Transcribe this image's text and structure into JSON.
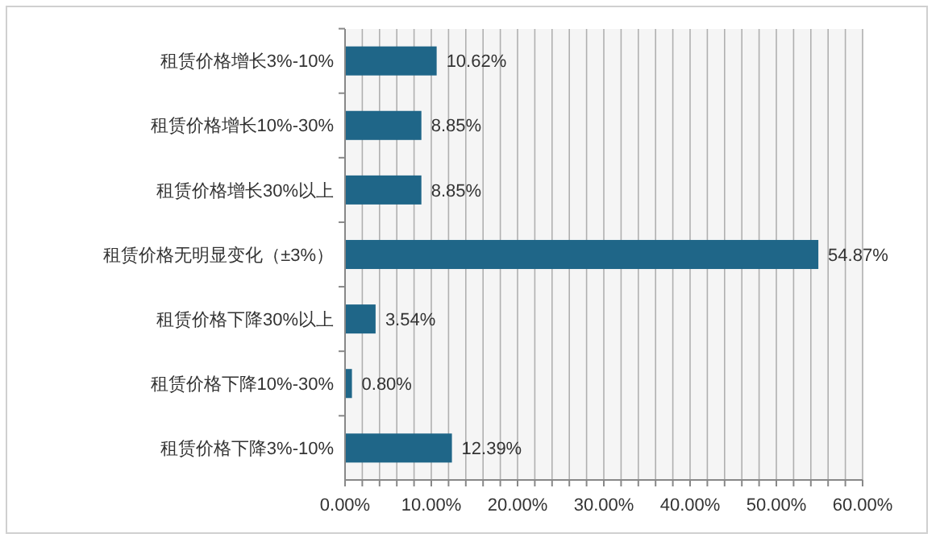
{
  "chart_data": {
    "type": "bar",
    "orientation": "horizontal",
    "categories": [
      "租赁价格增长3%-10%",
      "租赁价格增长10%-30%",
      "租赁价格增长30%以上",
      "租赁价格无明显变化（±3%）",
      "租赁价格下降30%以上",
      "租赁价格下降10%-30%",
      "租赁价格下降3%-10%"
    ],
    "values": [
      10.62,
      8.85,
      8.85,
      54.87,
      3.54,
      0.8,
      12.39
    ],
    "value_labels": [
      "10.62%",
      "8.85%",
      "8.85%",
      "54.87%",
      "3.54%",
      "0.80%",
      "12.39%"
    ],
    "color": "#1f6688",
    "xlim": [
      0,
      60
    ],
    "xticks": [
      {
        "value": 0,
        "label": "0.00%"
      },
      {
        "value": 2,
        "label": null
      },
      {
        "value": 4,
        "label": null
      },
      {
        "value": 6,
        "label": null
      },
      {
        "value": 8,
        "label": null
      },
      {
        "value": 10,
        "label": "10.00%"
      },
      {
        "value": 12,
        "label": null
      },
      {
        "value": 14,
        "label": null
      },
      {
        "value": 16,
        "label": null
      },
      {
        "value": 18,
        "label": null
      },
      {
        "value": 20,
        "label": "20.00%"
      },
      {
        "value": 22,
        "label": null
      },
      {
        "value": 24,
        "label": null
      },
      {
        "value": 26,
        "label": null
      },
      {
        "value": 28,
        "label": null
      },
      {
        "value": 30,
        "label": "30.00%"
      },
      {
        "value": 32,
        "label": null
      },
      {
        "value": 34,
        "label": null
      },
      {
        "value": 36,
        "label": null
      },
      {
        "value": 38,
        "label": null
      },
      {
        "value": 40,
        "label": "40.00%"
      },
      {
        "value": 42,
        "label": null
      },
      {
        "value": 44,
        "label": null
      },
      {
        "value": 46,
        "label": null
      },
      {
        "value": 48,
        "label": null
      },
      {
        "value": 50,
        "label": "50.00%"
      },
      {
        "value": 52,
        "label": null
      },
      {
        "value": 54,
        "label": null
      },
      {
        "value": 56,
        "label": null
      },
      {
        "value": 58,
        "label": null
      },
      {
        "value": 60,
        "label": "60.00%"
      }
    ],
    "grid": "x"
  }
}
